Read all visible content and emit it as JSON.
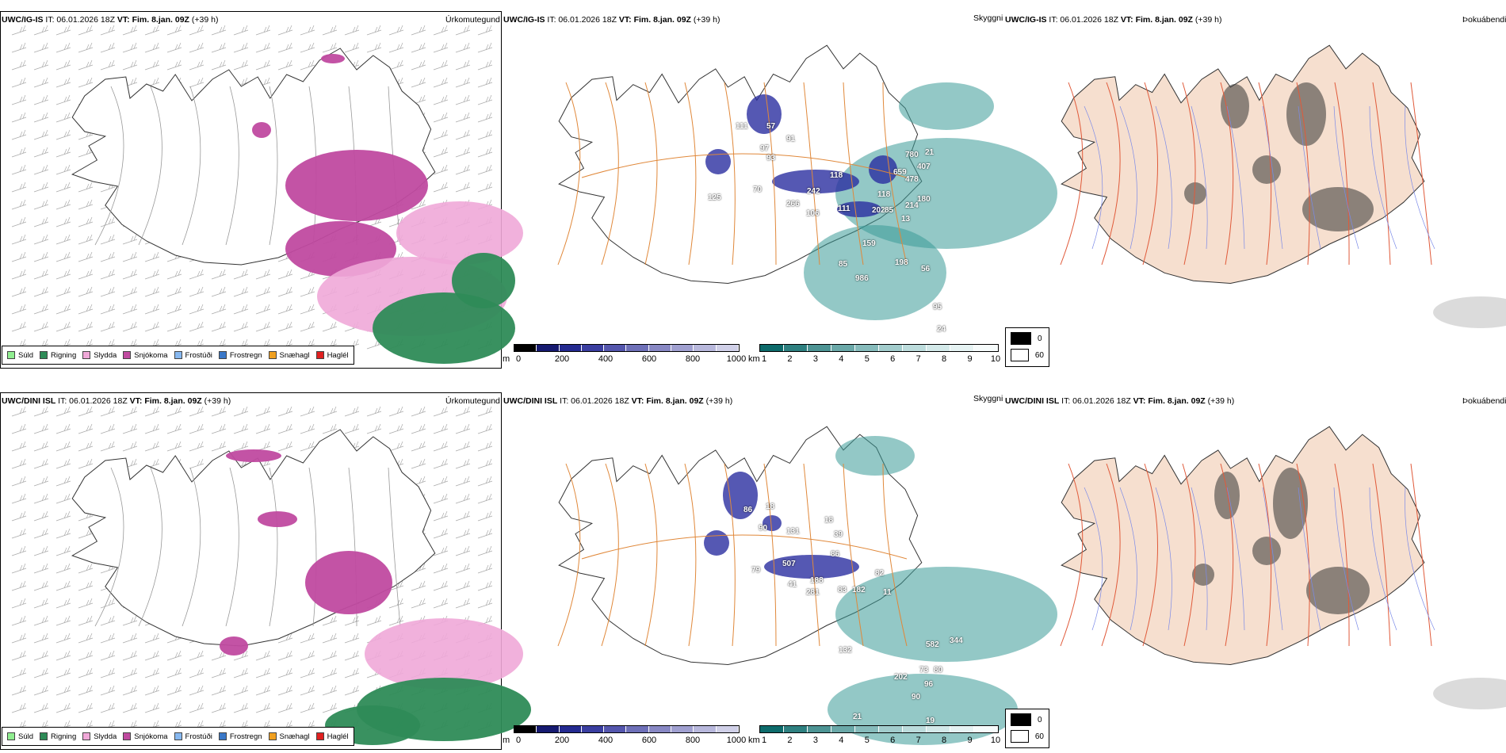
{
  "rows": [
    {
      "model": "UWC/IG-IS",
      "run": "IT: 06.01.2026 18Z",
      "vt_label": "VT:",
      "vt_value": "Fim. 8.jan. 09Z",
      "lead": "(+39 h)"
    },
    {
      "model": "UWC/DINI ISL",
      "run": "IT: 06.01.2026 18Z",
      "vt_label": "VT:",
      "vt_value": "Fim. 8.jan. 09Z",
      "lead": "(+39 h)"
    }
  ],
  "panel_names": {
    "precip": "Úrkomutegund",
    "ceiling": "Skyggni",
    "fog": "Þokuábendi"
  },
  "precip_legend": [
    {
      "label": "Súld",
      "color": "#90ee90"
    },
    {
      "label": "Rigning",
      "color": "#2e8b57"
    },
    {
      "label": "Slydda",
      "color": "#f0a8d8"
    },
    {
      "label": "Snjókoma",
      "color": "#c04aa0"
    },
    {
      "label": "Frostúði",
      "color": "#87b8f0"
    },
    {
      "label": "Frostregn",
      "color": "#3a78c8"
    },
    {
      "label": "Snæhagl",
      "color": "#f0a020"
    },
    {
      "label": "Haglél",
      "color": "#e02020"
    }
  ],
  "ceiling_bar": {
    "unit": "m",
    "ticks": [
      "0",
      "200",
      "400",
      "600",
      "800",
      "1000"
    ],
    "colors": [
      "#000000",
      "#161a70",
      "#242a90",
      "#3a3ea0",
      "#5456ad",
      "#6e70b8",
      "#8888c4",
      "#a0a0d0",
      "#b8b8dc",
      "#d0d0e8"
    ]
  },
  "vis_bar": {
    "unit": "km",
    "ticks": [
      "1",
      "2",
      "3",
      "4",
      "5",
      "6",
      "7",
      "8",
      "9",
      "10"
    ],
    "colors": [
      "#0d6b6b",
      "#2e8080",
      "#4d9494",
      "#6aa8a8",
      "#86bbbb",
      "#a2cccc",
      "#bcdcdc",
      "#d3e9e9",
      "#e6f3f3",
      "#f6fbfb"
    ]
  },
  "fog_legend": [
    {
      "label": "0",
      "color": "#000000"
    },
    {
      "label": "60",
      "color": "#ffffff"
    }
  ],
  "ceiling_values": [
    [
      "111",
      "57",
      "91",
      "97",
      "93",
      "118",
      "70",
      "125",
      "242",
      "266",
      "106",
      "111",
      "202",
      "85",
      "118",
      "214",
      "180",
      "780",
      "659",
      "478",
      "407",
      "21",
      "159",
      "85",
      "198",
      "56",
      "986",
      "95",
      "24",
      "13"
    ],
    [
      "86",
      "18",
      "90",
      "131",
      "18",
      "39",
      "86",
      "79",
      "507",
      "41",
      "188",
      "281",
      "83",
      "182",
      "82",
      "11",
      "132",
      "582",
      "344",
      "202",
      "73",
      "80",
      "96",
      "90",
      "21",
      "19"
    ]
  ]
}
